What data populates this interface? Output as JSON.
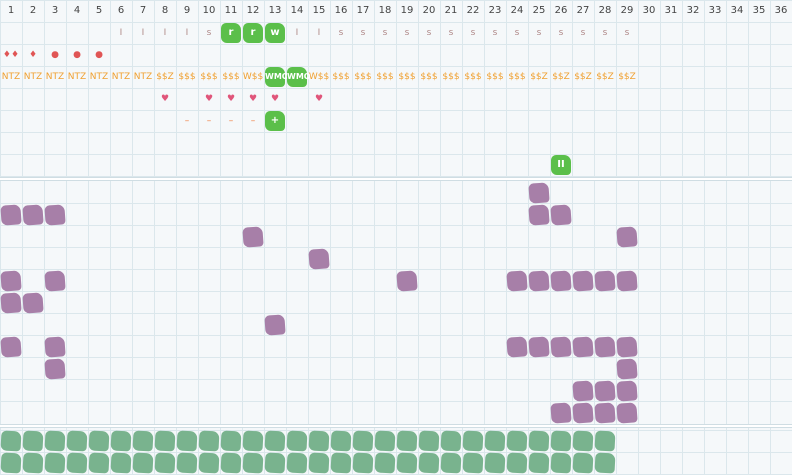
{
  "columns": [
    "1",
    "2",
    "3",
    "4",
    "5",
    "6",
    "7",
    "8",
    "9",
    "10",
    "11",
    "12",
    "13",
    "14",
    "15",
    "16",
    "17",
    "18",
    "19",
    "20",
    "21",
    "22",
    "23",
    "24",
    "25",
    "26",
    "27",
    "28",
    "29",
    "30",
    "31",
    "32",
    "33",
    "34",
    "35",
    "36"
  ],
  "colors": {
    "tick": "#b08a8a",
    "drop": "#e05555",
    "ntz": "#f0a030",
    "heart": "#e0557a",
    "dash": "#f07a3a",
    "magenta_blob": "#a77fa8",
    "green_blob": "#79b38e",
    "bright_green": "#5bbf4a"
  },
  "track_row1": {
    "ticks": [
      {
        "col": 6,
        "label": "I"
      },
      {
        "col": 7,
        "label": "I"
      },
      {
        "col": 8,
        "label": "I"
      },
      {
        "col": 9,
        "label": "I"
      },
      {
        "col": 10,
        "label": "s"
      },
      {
        "col": 14,
        "label": "I"
      },
      {
        "col": 15,
        "label": "I"
      },
      {
        "col": 16,
        "label": "s"
      },
      {
        "col": 17,
        "label": "s"
      },
      {
        "col": 18,
        "label": "s"
      },
      {
        "col": 19,
        "label": "s"
      },
      {
        "col": 20,
        "label": "s"
      },
      {
        "col": 21,
        "label": "s"
      },
      {
        "col": 22,
        "label": "s"
      },
      {
        "col": 23,
        "label": "s"
      },
      {
        "col": 24,
        "label": "s"
      },
      {
        "col": 25,
        "label": "s"
      },
      {
        "col": 26,
        "label": "s"
      },
      {
        "col": 27,
        "label": "s"
      },
      {
        "col": 28,
        "label": "s"
      },
      {
        "col": 29,
        "label": "s"
      }
    ],
    "badges": [
      {
        "col": 11,
        "label": "r"
      },
      {
        "col": 12,
        "label": "r"
      },
      {
        "col": 13,
        "label": "w"
      }
    ]
  },
  "track_row2": [
    {
      "col": 1,
      "label": "♦♦"
    },
    {
      "col": 2,
      "label": "♦"
    },
    {
      "col": 3,
      "label": "●"
    },
    {
      "col": 4,
      "label": "●"
    },
    {
      "col": 5,
      "label": "●"
    }
  ],
  "track_row3": {
    "labels": [
      {
        "col": 1,
        "label": "NTZ"
      },
      {
        "col": 2,
        "label": "NTZ"
      },
      {
        "col": 3,
        "label": "NTZ"
      },
      {
        "col": 4,
        "label": "NTZ"
      },
      {
        "col": 5,
        "label": "NTZ"
      },
      {
        "col": 6,
        "label": "NTZ"
      },
      {
        "col": 7,
        "label": "NTZ"
      },
      {
        "col": 8,
        "label": "$$Z"
      },
      {
        "col": 9,
        "label": "$$$"
      },
      {
        "col": 10,
        "label": "$$$"
      },
      {
        "col": 11,
        "label": "$$$"
      },
      {
        "col": 12,
        "label": "W$$"
      },
      {
        "col": 15,
        "label": "W$$"
      },
      {
        "col": 16,
        "label": "$$$"
      },
      {
        "col": 17,
        "label": "$$$"
      },
      {
        "col": 18,
        "label": "$$$"
      },
      {
        "col": 19,
        "label": "$$$"
      },
      {
        "col": 20,
        "label": "$$$"
      },
      {
        "col": 21,
        "label": "$$$"
      },
      {
        "col": 22,
        "label": "$$$"
      },
      {
        "col": 23,
        "label": "$$$"
      },
      {
        "col": 24,
        "label": "$$$"
      },
      {
        "col": 25,
        "label": "$$Z"
      },
      {
        "col": 26,
        "label": "$$Z"
      },
      {
        "col": 27,
        "label": "$$Z"
      },
      {
        "col": 28,
        "label": "$$Z"
      },
      {
        "col": 29,
        "label": "$$Z"
      }
    ],
    "badges": [
      {
        "col": 13,
        "label": "WMO"
      },
      {
        "col": 14,
        "label": "WMO"
      }
    ]
  },
  "track_row4": [
    {
      "col": 8,
      "label": "♥"
    },
    {
      "col": 10,
      "label": "♥"
    },
    {
      "col": 11,
      "label": "♥"
    },
    {
      "col": 12,
      "label": "♥"
    },
    {
      "col": 13,
      "label": "♥"
    },
    {
      "col": 15,
      "label": "♥"
    }
  ],
  "track_row5": {
    "dashes": [
      {
        "col": 9,
        "label": "–"
      },
      {
        "col": 10,
        "label": "–"
      },
      {
        "col": 11,
        "label": "–"
      },
      {
        "col": 12,
        "label": "–"
      }
    ],
    "badges": [
      {
        "col": 13,
        "label": "+"
      }
    ]
  },
  "track_row7": {
    "badges": [
      {
        "col": 26,
        "label": "II"
      }
    ]
  },
  "magenta_cells": [
    {
      "row": 1,
      "col": 25
    },
    {
      "row": 2,
      "col": 1
    },
    {
      "row": 2,
      "col": 2
    },
    {
      "row": 2,
      "col": 3
    },
    {
      "row": 2,
      "col": 25
    },
    {
      "row": 2,
      "col": 26
    },
    {
      "row": 3,
      "col": 12
    },
    {
      "row": 3,
      "col": 29
    },
    {
      "row": 4,
      "col": 15
    },
    {
      "row": 5,
      "col": 1
    },
    {
      "row": 5,
      "col": 3
    },
    {
      "row": 5,
      "col": 19
    },
    {
      "row": 5,
      "col": 24
    },
    {
      "row": 5,
      "col": 25
    },
    {
      "row": 5,
      "col": 26
    },
    {
      "row": 5,
      "col": 27
    },
    {
      "row": 5,
      "col": 28
    },
    {
      "row": 5,
      "col": 29
    },
    {
      "row": 6,
      "col": 1
    },
    {
      "row": 6,
      "col": 2
    },
    {
      "row": 7,
      "col": 13
    },
    {
      "row": 8,
      "col": 1
    },
    {
      "row": 8,
      "col": 3
    },
    {
      "row": 8,
      "col": 24
    },
    {
      "row": 8,
      "col": 25
    },
    {
      "row": 8,
      "col": 26
    },
    {
      "row": 8,
      "col": 27
    },
    {
      "row": 8,
      "col": 28
    },
    {
      "row": 8,
      "col": 29
    },
    {
      "row": 9,
      "col": 3
    },
    {
      "row": 9,
      "col": 29
    },
    {
      "row": 10,
      "col": 27
    },
    {
      "row": 10,
      "col": 28
    },
    {
      "row": 10,
      "col": 29
    },
    {
      "row": 11,
      "col": 26
    },
    {
      "row": 11,
      "col": 27
    },
    {
      "row": 11,
      "col": 28
    },
    {
      "row": 11,
      "col": 29
    }
  ],
  "green_rows": [
    {
      "row": 1,
      "from": 1,
      "to": 28
    },
    {
      "row": 2,
      "from": 1,
      "to": 28
    }
  ]
}
